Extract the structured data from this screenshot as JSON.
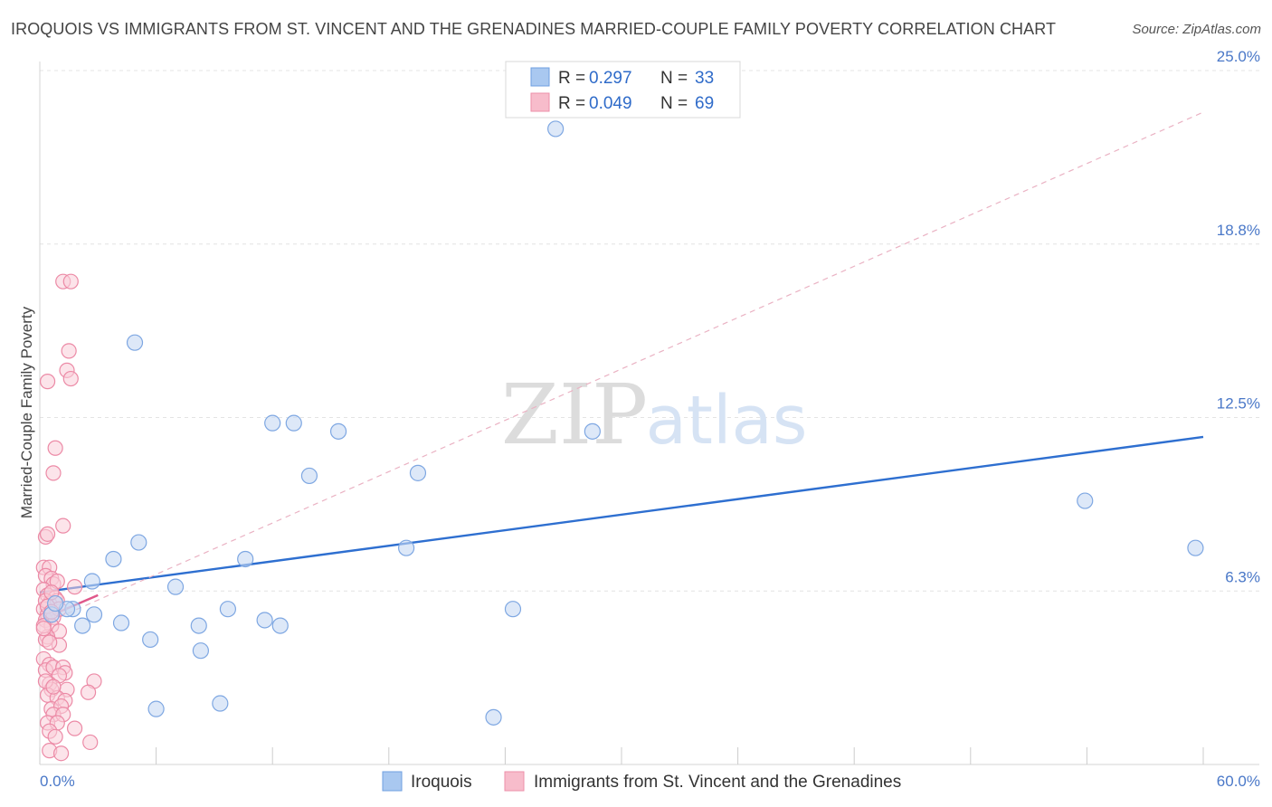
{
  "title": "IROQUOIS VS IMMIGRANTS FROM ST. VINCENT AND THE GRENADINES MARRIED-COUPLE FAMILY POVERTY CORRELATION CHART",
  "source": "Source: ZipAtlas.com",
  "watermark": {
    "zip": "ZIP",
    "atlas": "atlas"
  },
  "legend": {
    "r_label": "R =",
    "n_label": "N =",
    "rows": [
      {
        "r": "0.297",
        "n": "33",
        "color": "#a9c8f0",
        "stroke": "#6f9fe0"
      },
      {
        "r": "0.049",
        "n": "69",
        "color": "#f7bccb",
        "stroke": "#ec8fa9"
      }
    ]
  },
  "colors": {
    "blue_fill": "#c6d9f3",
    "blue_stroke": "#7ea7e2",
    "blue_line": "#2e6fd0",
    "pink_fill": "#f9cdd9",
    "pink_stroke": "#ec8aa6",
    "pink_line": "#e0578a",
    "grid": "#e4e4e4"
  },
  "chart_data": {
    "type": "scatter",
    "title": "IROQUOIS VS IMMIGRANTS FROM ST. VINCENT AND THE GRENADINES MARRIED-COUPLE FAMILY POVERTY CORRELATION CHART",
    "xlabel": "",
    "ylabel": "Married-Couple Family Poverty",
    "xlim": [
      0,
      60
    ],
    "ylim": [
      0,
      25
    ],
    "x_tick_labels": [
      "0.0%",
      "60.0%"
    ],
    "y_ticks": [
      {
        "value": 6.25,
        "label": "6.3%"
      },
      {
        "value": 12.5,
        "label": "12.5%"
      },
      {
        "value": 18.75,
        "label": "18.8%"
      },
      {
        "value": 25.0,
        "label": "25.0%"
      }
    ],
    "grid": true,
    "legend_placement": "top-center",
    "series": [
      {
        "name": "Iroquois",
        "points": [
          [
            26.6,
            22.9
          ],
          [
            4.9,
            15.2
          ],
          [
            12.0,
            12.3
          ],
          [
            13.1,
            12.3
          ],
          [
            15.4,
            12.0
          ],
          [
            28.5,
            12.0
          ],
          [
            13.9,
            10.4
          ],
          [
            19.5,
            10.5
          ],
          [
            53.9,
            9.5
          ],
          [
            59.6,
            7.8
          ],
          [
            5.1,
            8.0
          ],
          [
            3.8,
            7.4
          ],
          [
            10.6,
            7.4
          ],
          [
            18.9,
            7.8
          ],
          [
            2.7,
            6.6
          ],
          [
            7.0,
            6.4
          ],
          [
            9.7,
            5.6
          ],
          [
            1.7,
            5.6
          ],
          [
            2.8,
            5.4
          ],
          [
            4.2,
            5.1
          ],
          [
            2.2,
            5.0
          ],
          [
            8.2,
            5.0
          ],
          [
            11.6,
            5.2
          ],
          [
            12.4,
            5.0
          ],
          [
            24.4,
            5.6
          ],
          [
            5.7,
            4.5
          ],
          [
            8.3,
            4.1
          ],
          [
            6.0,
            2.0
          ],
          [
            9.3,
            2.2
          ],
          [
            23.4,
            1.7
          ],
          [
            1.4,
            5.6
          ],
          [
            0.6,
            5.4
          ],
          [
            0.8,
            5.8
          ]
        ]
      },
      {
        "name": "Immigrants from St. Vincent and the Grenadines",
        "points": [
          [
            1.2,
            17.4
          ],
          [
            1.6,
            17.4
          ],
          [
            1.5,
            14.9
          ],
          [
            1.4,
            14.2
          ],
          [
            1.6,
            13.9
          ],
          [
            0.4,
            13.8
          ],
          [
            0.8,
            11.4
          ],
          [
            0.7,
            10.5
          ],
          [
            1.2,
            8.6
          ],
          [
            0.3,
            8.2
          ],
          [
            0.4,
            8.3
          ],
          [
            0.2,
            7.1
          ],
          [
            0.5,
            7.1
          ],
          [
            0.3,
            6.8
          ],
          [
            0.6,
            6.7
          ],
          [
            0.7,
            6.5
          ],
          [
            0.9,
            6.6
          ],
          [
            1.8,
            6.4
          ],
          [
            0.2,
            6.3
          ],
          [
            0.4,
            6.1
          ],
          [
            0.8,
            6.0
          ],
          [
            0.5,
            5.8
          ],
          [
            0.2,
            5.6
          ],
          [
            0.4,
            5.4
          ],
          [
            0.3,
            5.2
          ],
          [
            0.7,
            5.3
          ],
          [
            0.6,
            5.0
          ],
          [
            1.0,
            4.8
          ],
          [
            0.4,
            4.6
          ],
          [
            0.3,
            4.5
          ],
          [
            1.0,
            4.3
          ],
          [
            0.2,
            3.8
          ],
          [
            0.5,
            3.6
          ],
          [
            0.3,
            3.4
          ],
          [
            0.7,
            3.5
          ],
          [
            1.2,
            3.5
          ],
          [
            1.3,
            3.3
          ],
          [
            1.0,
            3.2
          ],
          [
            2.8,
            3.0
          ],
          [
            0.5,
            2.9
          ],
          [
            0.6,
            2.7
          ],
          [
            0.4,
            2.5
          ],
          [
            1.4,
            2.7
          ],
          [
            2.5,
            2.6
          ],
          [
            0.9,
            2.4
          ],
          [
            1.3,
            2.3
          ],
          [
            0.6,
            2.0
          ],
          [
            1.1,
            2.1
          ],
          [
            0.7,
            1.8
          ],
          [
            1.2,
            1.8
          ],
          [
            0.4,
            1.5
          ],
          [
            0.9,
            1.5
          ],
          [
            1.8,
            1.3
          ],
          [
            0.5,
            1.2
          ],
          [
            0.8,
            1.0
          ],
          [
            2.6,
            0.8
          ],
          [
            0.5,
            0.5
          ],
          [
            1.1,
            0.4
          ],
          [
            0.3,
            5.9
          ],
          [
            0.9,
            5.9
          ],
          [
            0.6,
            6.2
          ],
          [
            0.2,
            5.0
          ],
          [
            1.0,
            5.6
          ],
          [
            0.5,
            4.4
          ],
          [
            0.3,
            3.0
          ],
          [
            0.7,
            2.8
          ],
          [
            0.4,
            5.7
          ],
          [
            0.6,
            5.5
          ],
          [
            0.2,
            4.9
          ]
        ]
      }
    ],
    "trend_lines": [
      {
        "series": "Iroquois",
        "from": [
          0,
          6.2
        ],
        "to": [
          60,
          11.8
        ]
      },
      {
        "series": "Immigrants from St. Vincent and the Grenadines",
        "from": [
          0,
          5.2
        ],
        "to": [
          3.0,
          6.1
        ]
      },
      {
        "series": "reference",
        "from": [
          0,
          5.0
        ],
        "to": [
          60,
          23.5
        ]
      }
    ]
  }
}
